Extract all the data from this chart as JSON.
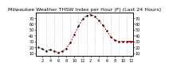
{
  "title": "Milwaukee Weather THSW Index per Hour (F) (Last 24 Hours)",
  "hours": [
    0,
    1,
    2,
    3,
    4,
    5,
    6,
    7,
    8,
    9,
    10,
    11,
    12,
    13,
    14,
    15,
    16,
    17,
    18,
    19,
    20,
    21,
    22,
    23
  ],
  "values": [
    20,
    17,
    14,
    16,
    13,
    11,
    13,
    18,
    28,
    42,
    56,
    68,
    74,
    76,
    73,
    66,
    58,
    48,
    38,
    32,
    30,
    30,
    30,
    30
  ],
  "last_value": 30,
  "line_color": "#cc0000",
  "marker_color": "#000000",
  "last_color": "#cc0000",
  "bg_color": "#ffffff",
  "ylim_min": 5,
  "ylim_max": 80,
  "ytick_values": [
    10,
    20,
    30,
    40,
    50,
    60,
    70
  ],
  "title_fontsize": 4.5,
  "tick_fontsize": 3.5,
  "vline_color": "#bbbbbb",
  "vline_positions": [
    0,
    2,
    4,
    6,
    8,
    10,
    12,
    14,
    16,
    18,
    20,
    22
  ],
  "xtick_positions": [
    1,
    3,
    5,
    7,
    9,
    11,
    13,
    15,
    17,
    19,
    21,
    23
  ],
  "xtick_labels": [
    "2",
    "4",
    "6",
    "8",
    "10",
    "12",
    "2",
    "4",
    "6",
    "8",
    "10",
    "12"
  ]
}
